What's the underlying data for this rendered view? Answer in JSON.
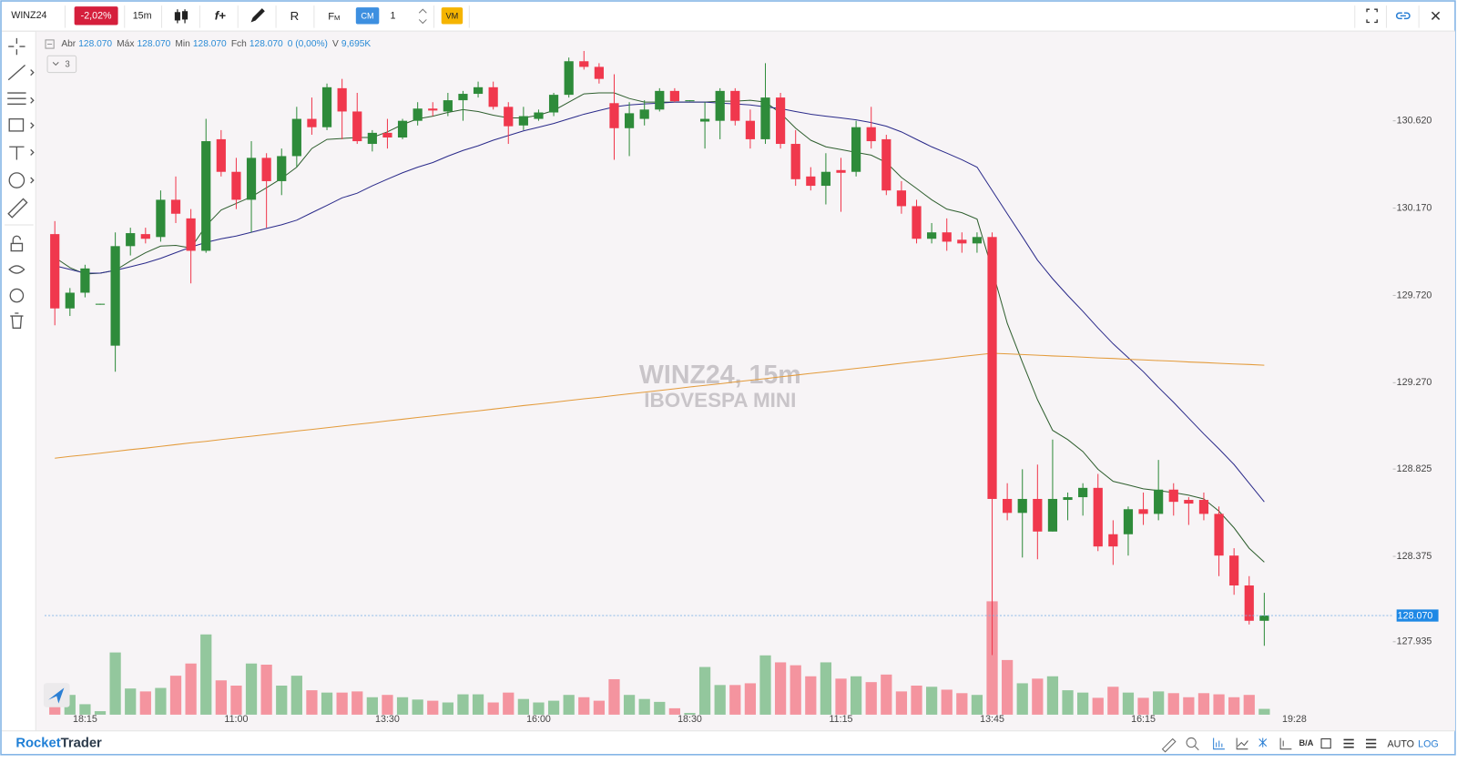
{
  "toolbar": {
    "symbol": "WINZ24",
    "change": "-2,02%",
    "timeframe": "15m",
    "functions": "f+",
    "r_tool": "R",
    "fm": [
      "F",
      "M"
    ],
    "cm": "CM",
    "count": "1",
    "vm": "VM"
  },
  "footer": {
    "brand": [
      "Rocket",
      "Trader"
    ],
    "ba": "B/A",
    "auto": "AUTO",
    "log": "LOG"
  },
  "chart_data": {
    "type": "candlestick",
    "watermark": [
      "WINZ24, 15m",
      "IBOVESPA MINI"
    ],
    "legend": [
      {
        "label": "Abr",
        "value": "128.070"
      },
      {
        "label": "Máx",
        "value": "128.070"
      },
      {
        "label": "Min",
        "value": "128.070"
      },
      {
        "label": "Fch",
        "value": "128.070"
      },
      {
        "label": "",
        "value": "0 (0,00%)"
      },
      {
        "label": "V",
        "value": "9,695K"
      }
    ],
    "indicator_count": "3",
    "categories": [
      null,
      null,
      "18:15",
      null,
      null,
      null,
      null,
      null,
      null,
      null,
      null,
      null,
      "11:00",
      null,
      null,
      null,
      null,
      null,
      null,
      null,
      null,
      null,
      "13:30",
      null,
      null,
      null,
      null,
      null,
      null,
      null,
      null,
      null,
      "16:00",
      null,
      null,
      null,
      null,
      null,
      null,
      null,
      null,
      null,
      "18:30",
      null,
      null,
      null,
      null,
      null,
      null,
      null,
      null,
      null,
      "11:15",
      null,
      null,
      null,
      null,
      null,
      null,
      null,
      null,
      null,
      "13:45",
      null,
      null,
      null,
      null,
      null,
      null,
      null,
      null,
      null,
      "16:15",
      null,
      null,
      null,
      null,
      null,
      null,
      null,
      null
    ],
    "current_time": "19:28",
    "candles": [
      {
        "o": 130.036,
        "h": 130.103,
        "l": 129.566,
        "c": 129.653
      },
      {
        "o": 129.653,
        "h": 129.758,
        "l": 129.614,
        "c": 129.734
      },
      {
        "o": 129.734,
        "h": 129.878,
        "l": 129.71,
        "c": 129.859
      },
      {
        "o": 129.672,
        "h": 129.677,
        "l": 129.672,
        "c": 129.677
      },
      {
        "o": 129.461,
        "h": 130.045,
        "l": 129.327,
        "c": 129.974
      },
      {
        "o": 129.974,
        "h": 130.069,
        "l": 129.926,
        "c": 130.041
      },
      {
        "o": 130.036,
        "h": 130.069,
        "l": 129.988,
        "c": 130.012
      },
      {
        "o": 130.021,
        "h": 130.261,
        "l": 129.997,
        "c": 130.213
      },
      {
        "o": 130.213,
        "h": 130.333,
        "l": 130.093,
        "c": 130.141
      },
      {
        "o": 130.117,
        "h": 130.165,
        "l": 129.782,
        "c": 129.95
      },
      {
        "o": 129.95,
        "h": 130.63,
        "l": 129.94,
        "c": 130.515
      },
      {
        "o": 130.525,
        "h": 130.572,
        "l": 130.333,
        "c": 130.357
      },
      {
        "o": 130.357,
        "h": 130.429,
        "l": 130.165,
        "c": 130.213
      },
      {
        "o": 130.213,
        "h": 130.515,
        "l": 130.045,
        "c": 130.429
      },
      {
        "o": 130.429,
        "h": 130.453,
        "l": 130.069,
        "c": 130.309
      },
      {
        "o": 130.309,
        "h": 130.477,
        "l": 130.237,
        "c": 130.438
      },
      {
        "o": 130.438,
        "h": 130.692,
        "l": 130.381,
        "c": 130.63
      },
      {
        "o": 130.63,
        "h": 130.74,
        "l": 130.548,
        "c": 130.587
      },
      {
        "o": 130.587,
        "h": 130.812,
        "l": 130.572,
        "c": 130.793
      },
      {
        "o": 130.788,
        "h": 130.836,
        "l": 130.525,
        "c": 130.668
      },
      {
        "o": 130.668,
        "h": 130.764,
        "l": 130.501,
        "c": 130.515
      },
      {
        "o": 130.501,
        "h": 130.572,
        "l": 130.462,
        "c": 130.558
      },
      {
        "o": 130.558,
        "h": 130.63,
        "l": 130.477,
        "c": 130.534
      },
      {
        "o": 130.534,
        "h": 130.63,
        "l": 130.525,
        "c": 130.62
      },
      {
        "o": 130.62,
        "h": 130.716,
        "l": 130.596,
        "c": 130.683
      },
      {
        "o": 130.683,
        "h": 130.716,
        "l": 130.644,
        "c": 130.673
      },
      {
        "o": 130.668,
        "h": 130.764,
        "l": 130.644,
        "c": 130.726
      },
      {
        "o": 130.726,
        "h": 130.774,
        "l": 130.62,
        "c": 130.759
      },
      {
        "o": 130.759,
        "h": 130.822,
        "l": 130.74,
        "c": 130.793
      },
      {
        "o": 130.793,
        "h": 130.822,
        "l": 130.678,
        "c": 130.692
      },
      {
        "o": 130.692,
        "h": 130.716,
        "l": 130.501,
        "c": 130.592
      },
      {
        "o": 130.596,
        "h": 130.692,
        "l": 130.572,
        "c": 130.644
      },
      {
        "o": 130.63,
        "h": 130.678,
        "l": 130.62,
        "c": 130.663
      },
      {
        "o": 130.663,
        "h": 130.764,
        "l": 130.644,
        "c": 130.754
      },
      {
        "o": 130.754,
        "h": 130.946,
        "l": 130.74,
        "c": 130.927
      },
      {
        "o": 130.927,
        "h": 130.98,
        "l": 130.884,
        "c": 130.898
      },
      {
        "o": 130.898,
        "h": 130.917,
        "l": 130.812,
        "c": 130.836
      },
      {
        "o": 130.711,
        "h": 130.86,
        "l": 130.419,
        "c": 130.582
      },
      {
        "o": 130.582,
        "h": 130.716,
        "l": 130.438,
        "c": 130.659
      },
      {
        "o": 130.63,
        "h": 130.726,
        "l": 130.596,
        "c": 130.678
      },
      {
        "o": 130.678,
        "h": 130.788,
        "l": 130.668,
        "c": 130.774
      },
      {
        "o": 130.774,
        "h": 130.788,
        "l": 130.716,
        "c": 130.721
      },
      {
        "o": 130.721,
        "h": 130.726,
        "l": 130.721,
        "c": 130.726
      },
      {
        "o": 130.616,
        "h": 130.716,
        "l": 130.477,
        "c": 130.63
      },
      {
        "o": 130.62,
        "h": 130.788,
        "l": 130.525,
        "c": 130.774
      },
      {
        "o": 130.774,
        "h": 130.788,
        "l": 130.596,
        "c": 130.62
      },
      {
        "o": 130.62,
        "h": 130.678,
        "l": 130.477,
        "c": 130.525
      },
      {
        "o": 130.525,
        "h": 130.917,
        "l": 130.501,
        "c": 130.74
      },
      {
        "o": 130.74,
        "h": 130.764,
        "l": 130.477,
        "c": 130.501
      },
      {
        "o": 130.501,
        "h": 130.572,
        "l": 130.285,
        "c": 130.319
      },
      {
        "o": 130.333,
        "h": 130.381,
        "l": 130.261,
        "c": 130.285
      },
      {
        "o": 130.285,
        "h": 130.453,
        "l": 130.189,
        "c": 130.357
      },
      {
        "o": 130.366,
        "h": 130.429,
        "l": 130.151,
        "c": 130.352
      },
      {
        "o": 130.357,
        "h": 130.62,
        "l": 130.333,
        "c": 130.587
      },
      {
        "o": 130.587,
        "h": 130.692,
        "l": 130.477,
        "c": 130.515
      },
      {
        "o": 130.525,
        "h": 130.548,
        "l": 130.237,
        "c": 130.261
      },
      {
        "o": 130.261,
        "h": 130.309,
        "l": 130.141,
        "c": 130.18
      },
      {
        "o": 130.18,
        "h": 130.213,
        "l": 129.988,
        "c": 130.012
      },
      {
        "o": 130.012,
        "h": 130.093,
        "l": 129.988,
        "c": 130.045
      },
      {
        "o": 130.045,
        "h": 130.117,
        "l": 129.95,
        "c": 129.997
      },
      {
        "o": 130.007,
        "h": 130.045,
        "l": 129.94,
        "c": 129.988
      },
      {
        "o": 129.988,
        "h": 130.045,
        "l": 129.94,
        "c": 130.021
      },
      {
        "o": 130.021,
        "h": 130.045,
        "l": 127.866,
        "c": 128.671
      },
      {
        "o": 128.671,
        "h": 128.752,
        "l": 128.561,
        "c": 128.599
      },
      {
        "o": 128.599,
        "h": 128.824,
        "l": 128.369,
        "c": 128.671
      },
      {
        "o": 128.671,
        "h": 128.848,
        "l": 128.36,
        "c": 128.503
      },
      {
        "o": 128.503,
        "h": 128.977,
        "l": 128.503,
        "c": 128.671
      },
      {
        "o": 128.666,
        "h": 128.704,
        "l": 128.561,
        "c": 128.68
      },
      {
        "o": 128.68,
        "h": 128.752,
        "l": 128.585,
        "c": 128.728
      },
      {
        "o": 128.728,
        "h": 128.8,
        "l": 128.402,
        "c": 128.426
      },
      {
        "o": 128.489,
        "h": 128.561,
        "l": 128.331,
        "c": 128.426
      },
      {
        "o": 128.489,
        "h": 128.632,
        "l": 128.379,
        "c": 128.618
      },
      {
        "o": 128.618,
        "h": 128.704,
        "l": 128.537,
        "c": 128.594
      },
      {
        "o": 128.594,
        "h": 128.872,
        "l": 128.561,
        "c": 128.719
      },
      {
        "o": 128.719,
        "h": 128.752,
        "l": 128.585,
        "c": 128.656
      },
      {
        "o": 128.666,
        "h": 128.68,
        "l": 128.537,
        "c": 128.647
      },
      {
        "o": 128.666,
        "h": 128.704,
        "l": 128.561,
        "c": 128.594
      },
      {
        "o": 128.594,
        "h": 128.632,
        "l": 128.273,
        "c": 128.379
      },
      {
        "o": 128.379,
        "h": 128.417,
        "l": 128.177,
        "c": 128.225
      },
      {
        "o": 128.225,
        "h": 128.273,
        "l": 128.024,
        "c": 128.043
      },
      {
        "o": 128.043,
        "h": 128.187,
        "l": 127.914,
        "c": 128.07
      }
    ],
    "volumes": [
      22,
      34,
      18,
      6,
      107,
      45,
      40,
      46,
      67,
      88,
      138,
      59,
      50,
      88,
      86,
      50,
      67,
      42,
      38,
      38,
      40,
      30,
      34,
      30,
      26,
      24,
      21,
      35,
      35,
      21,
      38,
      27,
      21,
      24,
      34,
      30,
      24,
      61,
      34,
      27,
      22,
      11,
      3,
      82,
      51,
      51,
      54,
      102,
      90,
      85,
      66,
      90,
      62,
      66,
      56,
      69,
      40,
      50,
      48,
      43,
      37,
      34,
      195,
      94,
      54,
      62,
      66,
      42,
      38,
      29,
      48,
      38,
      29,
      40,
      37,
      30,
      37,
      35,
      30,
      34,
      10
    ],
    "series": [
      {
        "color": "#2f5f2f",
        "values": [
          129.916,
          129.863,
          129.83,
          129.835,
          129.849,
          129.897,
          129.94,
          129.974,
          129.978,
          129.964,
          130.079,
          130.16,
          130.194,
          130.228,
          130.275,
          130.323,
          130.381,
          130.477,
          130.524,
          130.529,
          130.534,
          130.534,
          130.563,
          130.601,
          130.63,
          130.644,
          130.663,
          130.678,
          130.668,
          130.649,
          130.635,
          130.635,
          130.649,
          130.673,
          130.716,
          130.759,
          130.764,
          130.764,
          130.735,
          130.716,
          130.716,
          130.716,
          130.716,
          130.716,
          130.721,
          130.721,
          130.726,
          130.716,
          130.659,
          130.582,
          130.52,
          130.486,
          130.472,
          130.457,
          130.443,
          130.405,
          130.328,
          130.271,
          130.213,
          130.165,
          130.146,
          130.113,
          129.854,
          129.576,
          129.375,
          129.183,
          129.025,
          128.977,
          128.915,
          128.824,
          128.762,
          128.743,
          128.723,
          128.714,
          128.704,
          128.69,
          128.671,
          128.608,
          128.522,
          128.417,
          128.345
        ]
      },
      {
        "color": "#2a2a8a",
        "values": [
          129.873,
          129.854,
          129.835,
          129.835,
          129.849,
          129.868,
          129.887,
          129.911,
          129.94,
          129.969,
          129.993,
          130.012,
          130.026,
          130.045,
          130.065,
          130.084,
          130.108,
          130.146,
          130.184,
          130.223,
          130.247,
          130.285,
          130.319,
          130.352,
          130.381,
          130.405,
          130.438,
          130.467,
          130.491,
          130.52,
          130.544,
          130.568,
          130.587,
          130.606,
          130.63,
          130.654,
          130.673,
          130.692,
          130.702,
          130.707,
          130.711,
          130.716,
          130.716,
          130.716,
          130.711,
          130.707,
          130.702,
          130.692,
          130.683,
          130.668,
          130.654,
          130.644,
          130.635,
          130.625,
          130.611,
          130.592,
          130.563,
          130.524,
          130.486,
          130.453,
          130.419,
          130.381,
          130.261,
          130.141,
          130.022,
          129.902,
          129.806,
          129.72,
          129.638,
          129.552,
          129.471,
          129.399,
          129.327,
          129.246,
          129.169,
          129.087,
          129.006,
          128.929,
          128.848,
          128.752,
          128.656
        ]
      },
      {
        "color": "#e39b3b",
        "values": [
          128.881,
          128.89,
          128.898,
          128.907,
          128.916,
          128.925,
          128.933,
          128.942,
          128.951,
          128.96,
          128.968,
          128.977,
          128.986,
          128.994,
          129.003,
          129.012,
          129.021,
          129.029,
          129.038,
          129.047,
          129.056,
          129.064,
          129.073,
          129.082,
          129.091,
          129.099,
          129.108,
          129.117,
          129.125,
          129.134,
          129.143,
          129.152,
          129.16,
          129.169,
          129.178,
          129.187,
          129.195,
          129.204,
          129.213,
          129.221,
          129.23,
          129.239,
          129.248,
          129.256,
          129.265,
          129.274,
          129.283,
          129.291,
          129.3,
          129.309,
          129.318,
          129.326,
          129.335,
          129.344,
          129.352,
          129.361,
          129.37,
          129.379,
          129.387,
          129.396,
          129.405,
          129.414,
          129.422,
          129.419,
          129.415,
          129.412,
          129.408,
          129.405,
          129.402,
          129.398,
          129.395,
          129.391,
          129.388,
          129.384,
          129.381,
          129.377,
          129.374,
          129.37,
          129.367,
          129.364,
          129.36
        ]
      }
    ],
    "up_color": "#2e8b3a",
    "down_color": "#f0384d",
    "volume_up_color": "#93c79d",
    "volume_down_color": "#f4949f",
    "ylim": [
      127.559,
      131.075
    ],
    "yticks": [
      {
        "value": 130.62,
        "label": "130.620"
      },
      {
        "value": 130.17,
        "label": "130.170"
      },
      {
        "value": 129.72,
        "label": "129.720"
      },
      {
        "value": 129.27,
        "label": "129.270"
      },
      {
        "value": 128.825,
        "label": "128.825"
      },
      {
        "value": 128.375,
        "label": "128.375"
      },
      {
        "value": 127.935,
        "label": "127.935"
      }
    ],
    "last_price": {
      "value": 128.07,
      "label": "128.070"
    },
    "grid": false
  }
}
